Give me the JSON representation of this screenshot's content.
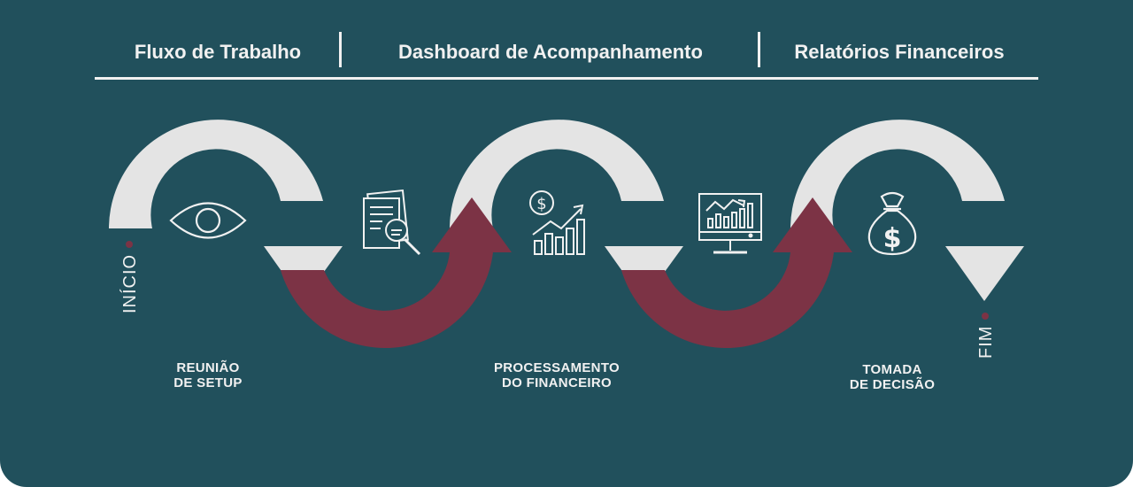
{
  "header": {
    "tabs": [
      {
        "label": "Fluxo de Trabalho"
      },
      {
        "label": "Dashboard de Acompanhamento"
      },
      {
        "label": "Relatórios Financeiros"
      }
    ]
  },
  "flow": {
    "start_label": "INÍCIO",
    "end_label": "FIM",
    "steps": [
      {
        "line1": "REUNIÃO",
        "line2": "DE SETUP",
        "icon": "eye-icon"
      },
      {
        "line1": "PROCESSAMENTO",
        "line2": "DO FINANCEIRO",
        "icon": "money-growth-chart-icon"
      },
      {
        "line1": "TOMADA",
        "line2": "DE DECISÃO",
        "icon": "money-bag-icon"
      }
    ],
    "connector_icons": [
      "document-search-icon",
      "monitor-chart-icon"
    ],
    "colors": {
      "background": "#21505c",
      "down_arrow": "#e4e4e4",
      "up_arrow": "#7c3345",
      "text": "#f1f1f1"
    }
  }
}
